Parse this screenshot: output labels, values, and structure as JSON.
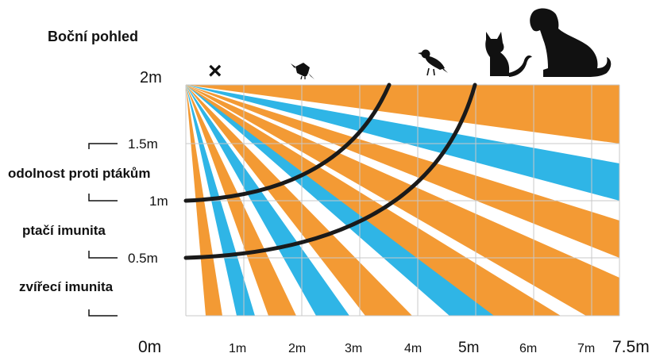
{
  "title": "Boční pohled",
  "zones": {
    "bird_resistance": "odolnost proti ptákům",
    "bird_immunity": "ptačí imunita",
    "animal_immunity": "zvířecí imunita"
  },
  "height_labels": {
    "h2": "2m",
    "h15": "1.5m",
    "h1": "1m",
    "h05": "0.5m"
  },
  "distance_labels": [
    "0m",
    "1m",
    "2m",
    "3m",
    "4m",
    "5m",
    "6m",
    "7m",
    "7.5m"
  ],
  "markers": {
    "cross": "×",
    "icons": [
      "small-bird-icon",
      "bird-icon",
      "cat-icon",
      "dog-icon"
    ]
  },
  "colors": {
    "orange": "#F39A34",
    "blue": "#2FB5E6",
    "grid": "#C8C8C8",
    "arc": "#1A1A1A"
  }
}
